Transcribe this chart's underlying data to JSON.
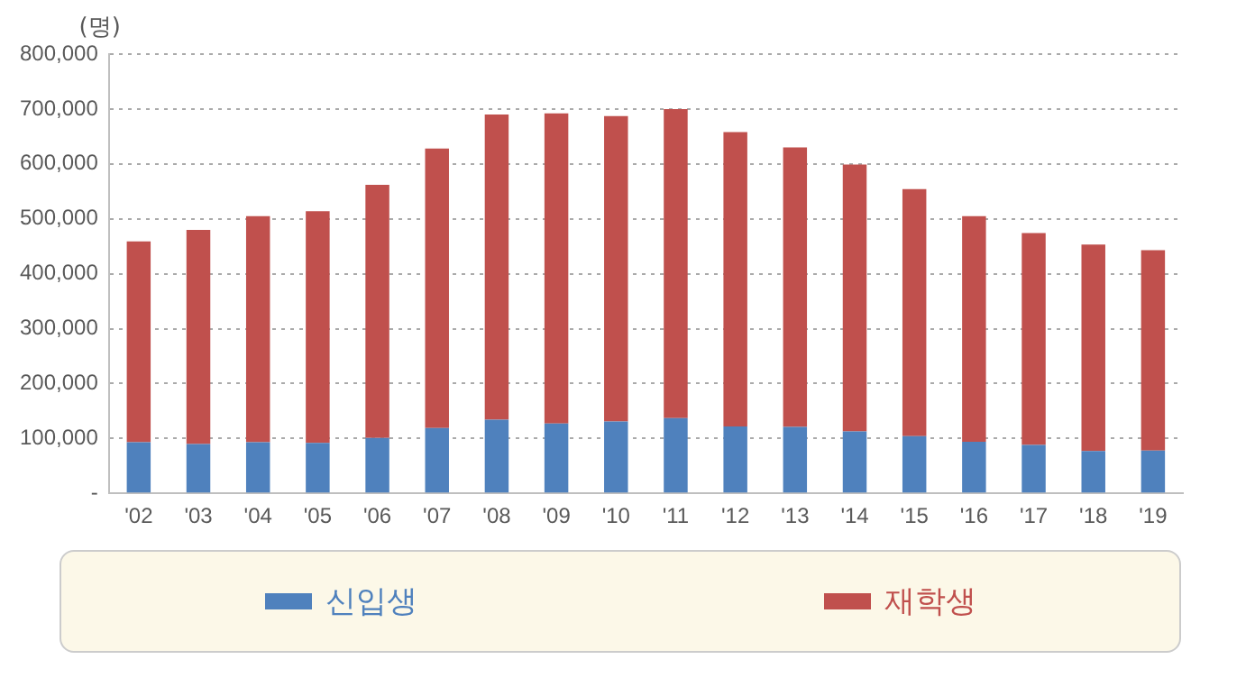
{
  "chart_data": {
    "type": "bar",
    "stacked": true,
    "ylabel": "(명)",
    "categories": [
      "'02",
      "'03",
      "'04",
      "'05",
      "'06",
      "'07",
      "'08",
      "'09",
      "'10",
      "'11",
      "'12",
      "'13",
      "'14",
      "'15",
      "'16",
      "'17",
      "'18",
      "'19"
    ],
    "series": [
      {
        "name": "신입생",
        "color": "#4f81bd",
        "values": [
          93000,
          90000,
          93000,
          92000,
          101000,
          119000,
          134000,
          127000,
          131000,
          137000,
          122000,
          121000,
          113000,
          104000,
          94000,
          88000,
          77000,
          78000
        ]
      },
      {
        "name": "재학생",
        "color": "#c0504d",
        "values": [
          366000,
          390000,
          412000,
          422000,
          461000,
          509000,
          556000,
          565000,
          556000,
          563000,
          536000,
          509000,
          486000,
          450000,
          411000,
          386000,
          376000,
          365000
        ]
      }
    ],
    "ylim": [
      0,
      800000
    ],
    "yticks": [
      {
        "value": 0,
        "label": "-"
      },
      {
        "value": 100000,
        "label": "100,000"
      },
      {
        "value": 200000,
        "label": "200,000"
      },
      {
        "value": 300000,
        "label": "300,000"
      },
      {
        "value": 400000,
        "label": "400,000"
      },
      {
        "value": 500000,
        "label": "500,000"
      },
      {
        "value": 600000,
        "label": "600,000"
      },
      {
        "value": 700000,
        "label": "700,000"
      },
      {
        "value": 800000,
        "label": "800,000"
      }
    ],
    "grid": "y",
    "legend": "bottom"
  }
}
